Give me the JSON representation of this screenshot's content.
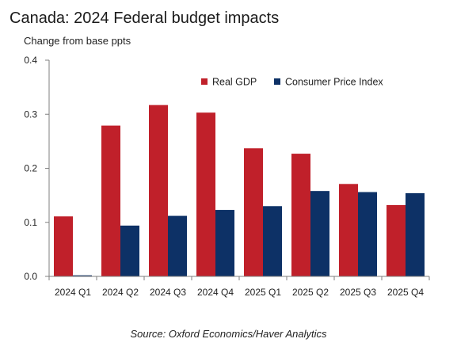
{
  "chart_data": {
    "type": "bar",
    "title": "Canada: 2024 Federal budget impacts",
    "subtitle": "Change from base ppts",
    "source": "Source: Oxford Economics/Haver Analytics",
    "categories": [
      "2024 Q1",
      "2024 Q2",
      "2024 Q3",
      "2024 Q4",
      "2025 Q1",
      "2025 Q2",
      "2025 Q3",
      "2025 Q4"
    ],
    "series": [
      {
        "name": "Real GDP",
        "color": "#c0202a",
        "values": [
          0.111,
          0.279,
          0.317,
          0.303,
          0.237,
          0.227,
          0.171,
          0.132
        ]
      },
      {
        "name": "Consumer Price Index",
        "color": "#0d3166",
        "values": [
          0.002,
          0.094,
          0.112,
          0.123,
          0.13,
          0.158,
          0.156,
          0.154
        ]
      }
    ],
    "ylim": [
      0,
      0.4
    ],
    "yticks": [
      "0.0",
      "0.1",
      "0.2",
      "0.3",
      "0.4"
    ],
    "grid": false,
    "legend_position": "top-right"
  }
}
